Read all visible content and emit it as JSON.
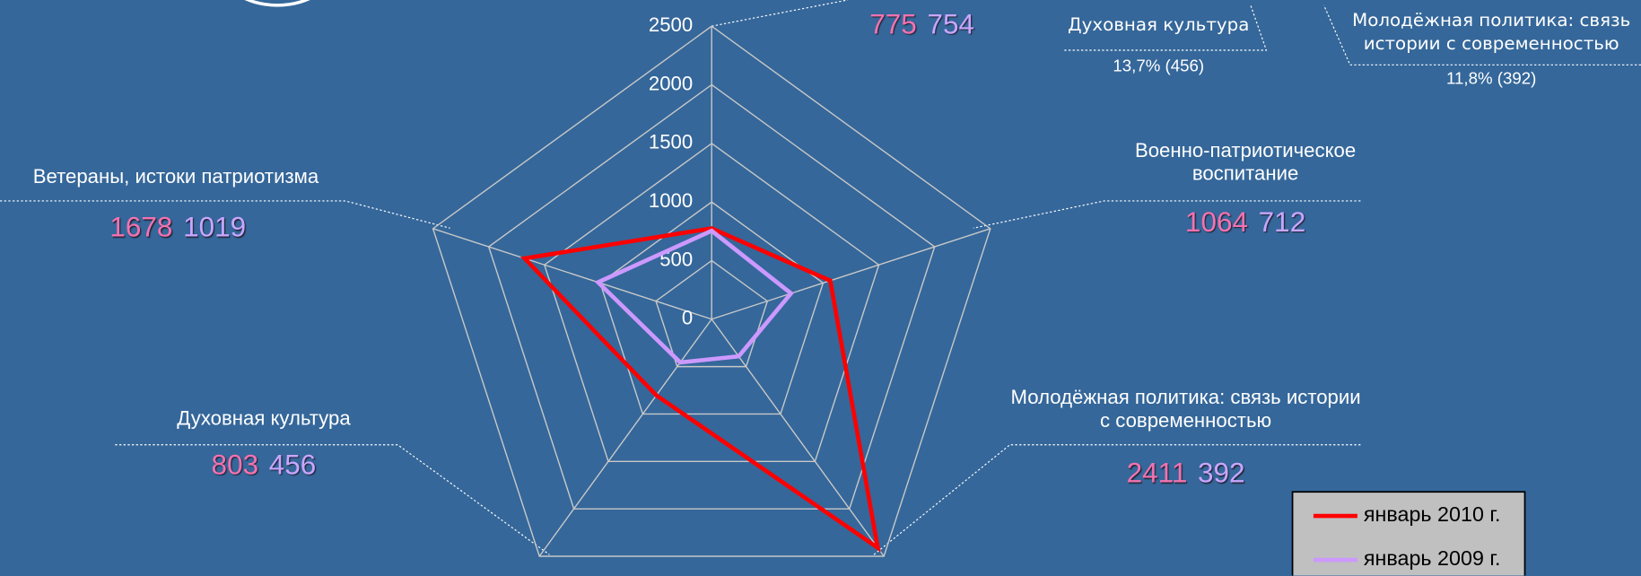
{
  "chart_data": {
    "type": "radar",
    "categories": [
      null,
      "Военно-патриотическое воспитание",
      "Молодёжная политика: связь истории с современностью",
      "Духовная культура",
      "Ветераны, истоки патриотизма"
    ],
    "series": [
      {
        "name": "январь 2010 г.",
        "color": "#ff0000",
        "label_color": "#f472b0",
        "values": [
          775,
          1064,
          2411,
          803,
          1678
        ]
      },
      {
        "name": "январь 2009 г.",
        "color": "#cc99ff",
        "label_color": "#c9a6ff",
        "values": [
          754,
          712,
          392,
          456,
          1019
        ]
      }
    ],
    "ylim": [
      0,
      2500
    ],
    "yticks": [
      0,
      500,
      1000,
      1500,
      2000,
      2500
    ],
    "grid": true,
    "legend": "lower right",
    "annotations": [
      {
        "title": "Духовная культура",
        "value": "13,7% (456)"
      },
      {
        "title": "Молодёжная политика: связь истории с современностью",
        "value": "11,8% (392)"
      }
    ]
  }
}
